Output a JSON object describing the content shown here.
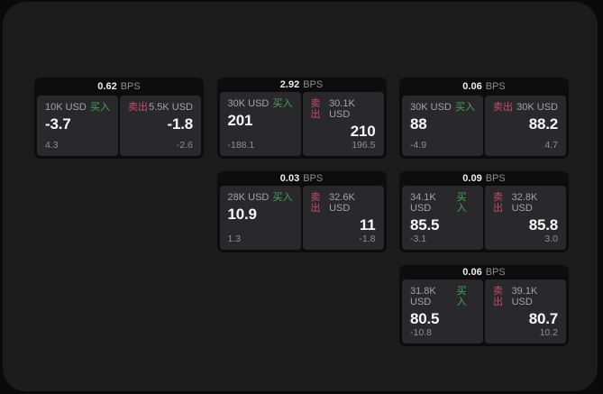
{
  "colors": {
    "buy_green": "#46a35a",
    "sell_red": "#c84a68",
    "window_bg": "#1c1c1d",
    "card_bg": "#0d0d0e",
    "panel_bg": "#29292b"
  },
  "bps_unit": "BPS",
  "buy_label": "买入",
  "sell_label": "卖出",
  "cards": [
    {
      "row": 1,
      "col": 1,
      "bps": "0.62",
      "buy": {
        "amount": "10K USD",
        "value": "-3.7",
        "sub": "4.3"
      },
      "sell": {
        "amount": "5.5K USD",
        "value": "-1.8",
        "sub": "-2.6"
      }
    },
    {
      "row": 1,
      "col": 2,
      "bps": "2.92",
      "buy": {
        "amount": "30K USD",
        "value": "201",
        "sub": "-188.1"
      },
      "sell": {
        "amount": "30.1K USD",
        "value": "210",
        "sub": "196.5"
      }
    },
    {
      "row": 1,
      "col": 3,
      "bps": "0.06",
      "buy": {
        "amount": "30K USD",
        "value": "88",
        "sub": "-4.9"
      },
      "sell": {
        "amount": "30K USD",
        "value": "88.2",
        "sub": "4.7"
      }
    },
    {
      "row": 2,
      "col": 2,
      "bps": "0.03",
      "buy": {
        "amount": "28K USD",
        "value": "10.9",
        "sub": "1.3"
      },
      "sell": {
        "amount": "32.6K USD",
        "value": "11",
        "sub": "-1.8"
      }
    },
    {
      "row": 2,
      "col": 3,
      "bps": "0.09",
      "buy": {
        "amount": "34.1K USD",
        "value": "85.5",
        "sub": "-3.1"
      },
      "sell": {
        "amount": "32.8K USD",
        "value": "85.8",
        "sub": "3.0"
      }
    },
    {
      "row": 3,
      "col": 3,
      "bps": "0.06",
      "buy": {
        "amount": "31.8K USD",
        "value": "80.5",
        "sub": "-10.8"
      },
      "sell": {
        "amount": "39.1K USD",
        "value": "80.7",
        "sub": "10.2"
      }
    }
  ]
}
